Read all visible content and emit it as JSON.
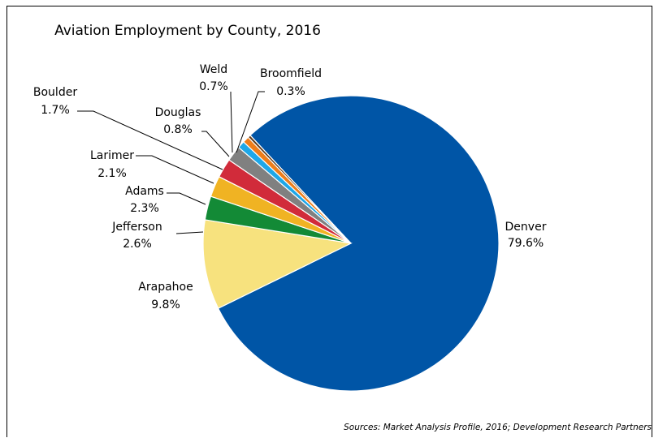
{
  "chart_data": {
    "type": "pie",
    "title": "Aviation Employment by County, 2016",
    "slices": [
      {
        "label": "Denver",
        "value": 79.6,
        "value_label": "79.6%",
        "color": "#0055a6"
      },
      {
        "label": "Arapahoe",
        "value": 9.8,
        "value_label": "9.8%",
        "color": "#f7e27e"
      },
      {
        "label": "Jefferson",
        "value": 2.6,
        "value_label": "2.6%",
        "color": "#138a36"
      },
      {
        "label": "Adams",
        "value": 2.3,
        "value_label": "2.3%",
        "color": "#f0b323"
      },
      {
        "label": "Larimer",
        "value": 2.1,
        "value_label": "2.1%",
        "color": "#d12b3a"
      },
      {
        "label": "Boulder",
        "value": 1.7,
        "value_label": "1.7%",
        "color": "#808080"
      },
      {
        "label": "Douglas",
        "value": 0.8,
        "value_label": "0.8%",
        "color": "#1ea7e8"
      },
      {
        "label": "Weld",
        "value": 0.7,
        "value_label": "0.7%",
        "color": "#ee7d1a"
      },
      {
        "label": "Broomfield",
        "value": 0.3,
        "value_label": "0.3%",
        "color": "#5d3b1e"
      }
    ],
    "source": "Sources: Market Analysis Profile, 2016; Development Research Partners"
  }
}
